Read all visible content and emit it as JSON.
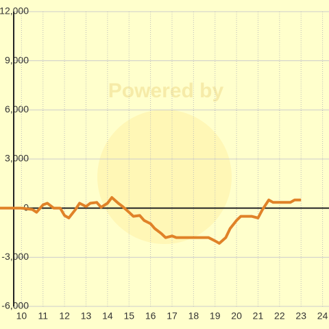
{
  "chart_data": {
    "type": "line",
    "watermark": "Powered by",
    "x": [
      9.0,
      10,
      10.5,
      10.7,
      11,
      11.2,
      11.5,
      11.8,
      12,
      12.2,
      12.5,
      12.7,
      13,
      13.2,
      13.5,
      13.7,
      14,
      14.2,
      14.5,
      14.7,
      15,
      15.2,
      15.5,
      15.7,
      16,
      16.2,
      16.5,
      16.7,
      17,
      17.2,
      17.5,
      18.7,
      19,
      19.2,
      19.5,
      19.7,
      20,
      20.2,
      20.7,
      21,
      21.2,
      21.5,
      21.7,
      22.5,
      22.7,
      23
    ],
    "series": [
      {
        "color": "#e08228",
        "values": [
          0,
          0,
          -80,
          -250,
          200,
          300,
          0,
          0,
          -450,
          -600,
          -100,
          300,
          100,
          300,
          350,
          50,
          300,
          650,
          300,
          100,
          -250,
          -500,
          -450,
          -750,
          -950,
          -1250,
          -1550,
          -1800,
          -1700,
          -1800,
          -1800,
          -1800,
          -2000,
          -2150,
          -1800,
          -1250,
          -750,
          -500,
          -500,
          -600,
          -100,
          500,
          350,
          350,
          500,
          500
        ]
      }
    ],
    "xlim": [
      9,
      24.3
    ],
    "xticks": [
      10,
      11,
      12,
      13,
      14,
      15,
      16,
      17,
      18,
      19,
      20,
      21,
      22,
      23,
      24
    ],
    "ylim": [
      -6000,
      12000
    ],
    "yticks": [
      {
        "value": -6000,
        "label": "-6,000"
      },
      {
        "value": -3000,
        "label": "-3,000"
      },
      0,
      {
        "value": 3000,
        "label": "3,000"
      },
      {
        "value": 6000,
        "label": "6,000"
      },
      {
        "value": 9000,
        "label": "9,000"
      },
      {
        "value": 12000,
        "label": "12,000"
      }
    ],
    "grid": true
  }
}
